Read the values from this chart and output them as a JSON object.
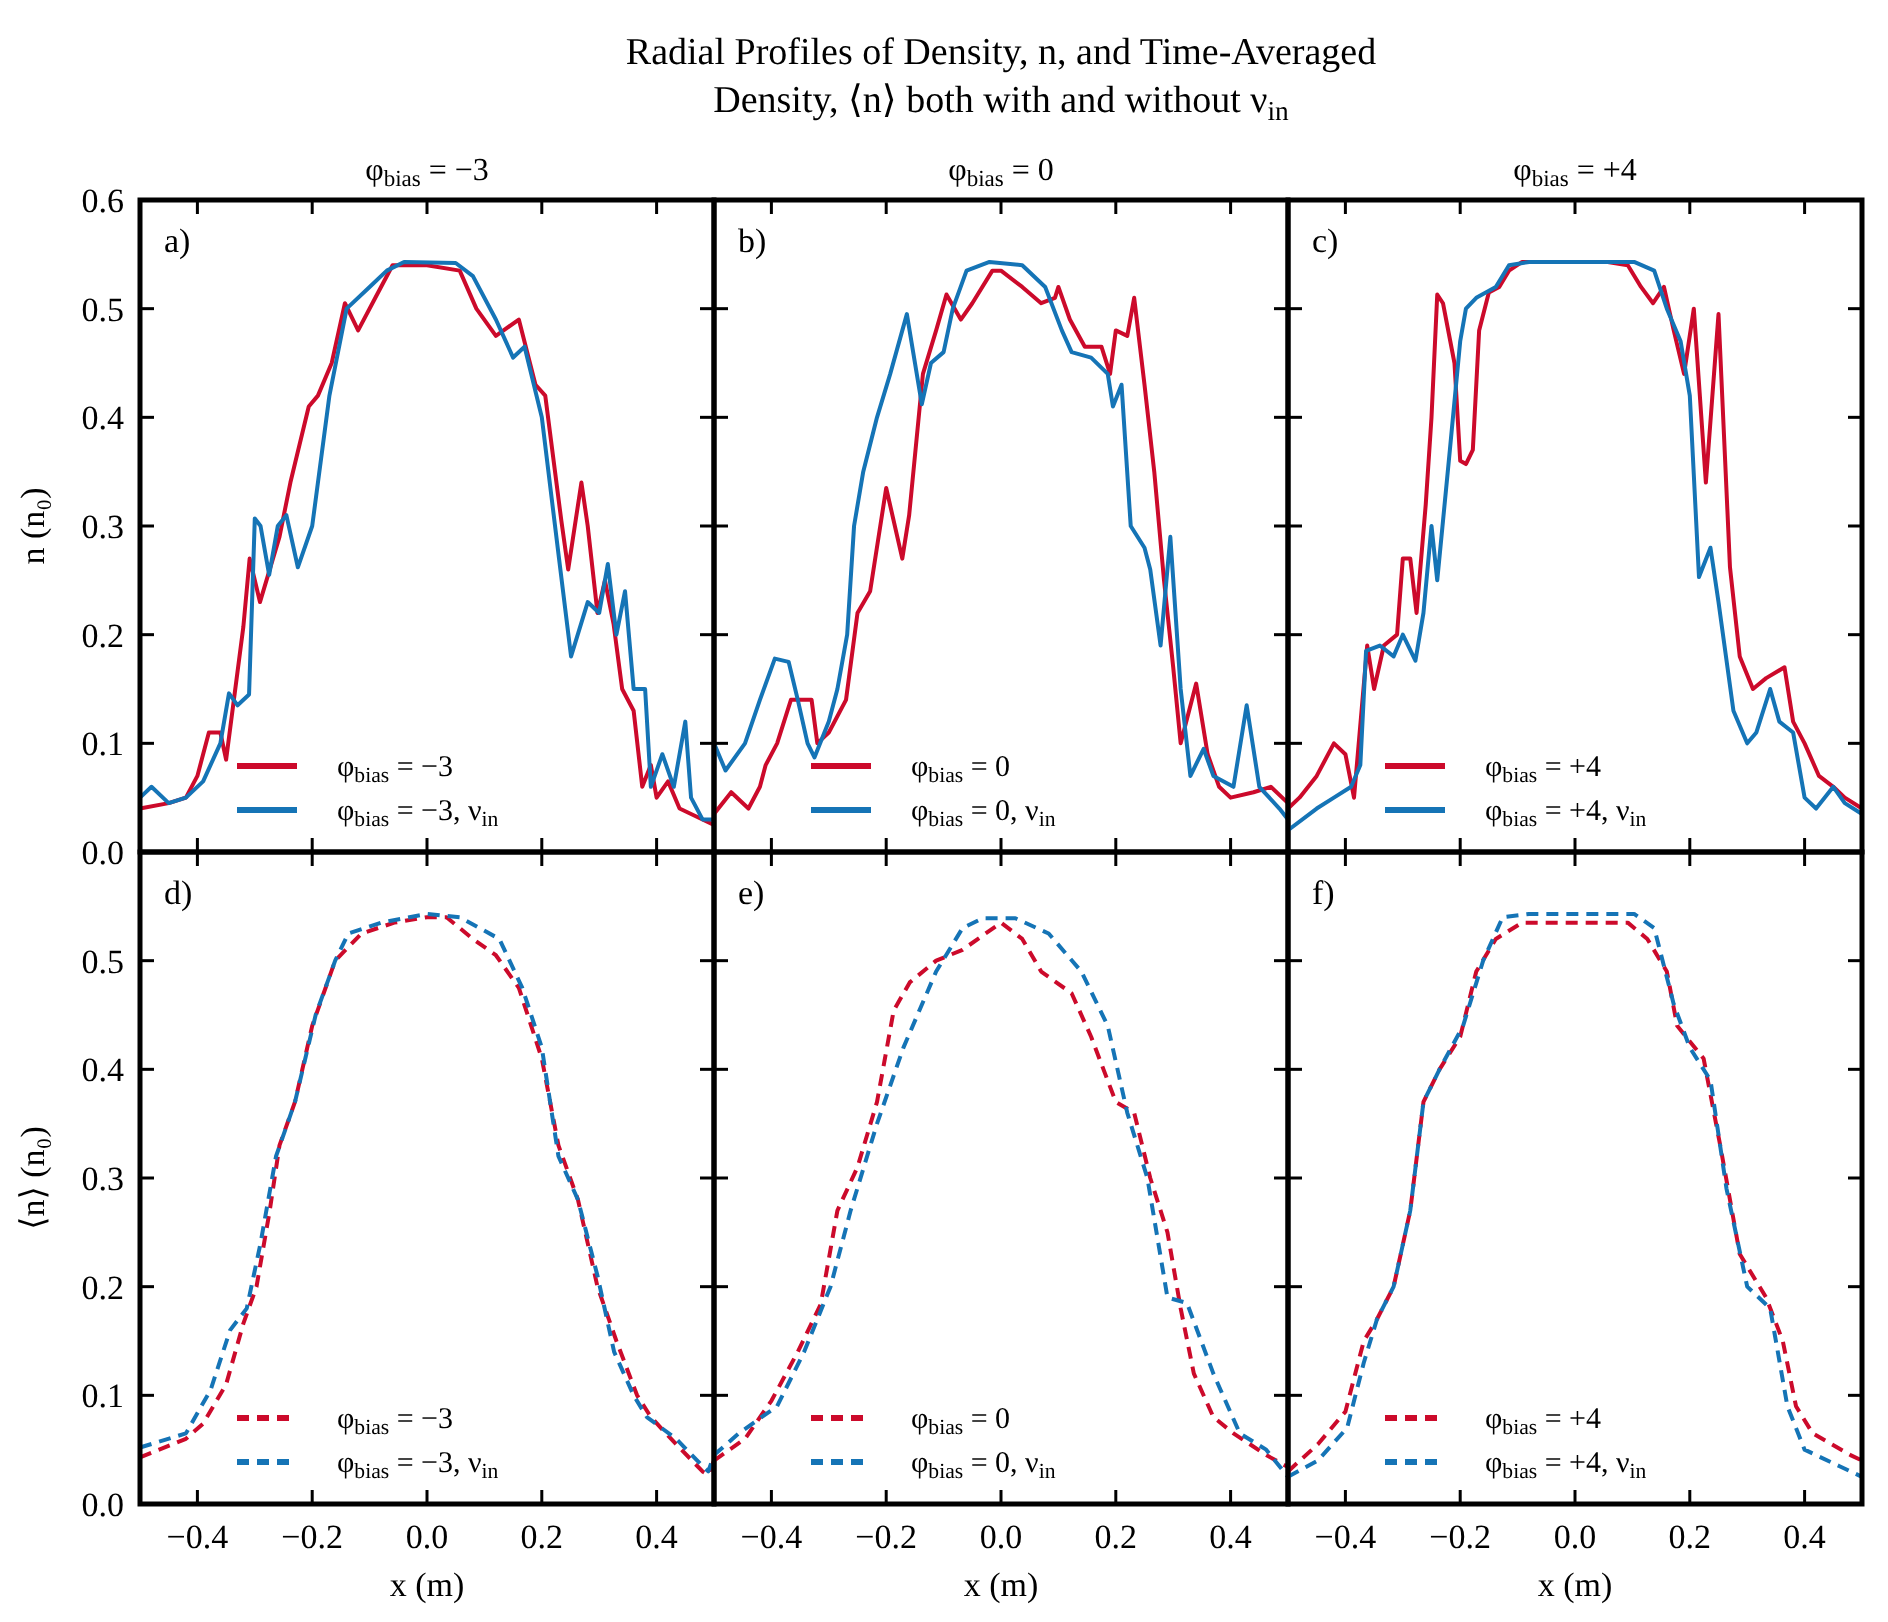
{
  "chart_data": [
    {
      "type": "other",
      "title": "Radial Profiles of Density, n, and Time-Averaged\nDensity, ⟨n⟩ both with and without ν$_{in}$"
    },
    {
      "type": "line",
      "title": "φ$_{bias}$ = −3",
      "ylabel": "n (n₀)",
      "annotations": [
        "a)"
      ],
      "legend": "bottom",
      "line_style": "solid",
      "tick_labels": "y",
      "xlim": [
        -0.5,
        0.5
      ],
      "ylim": [
        0,
        0.6
      ],
      "xticks": [
        {
          "value": -0.4,
          "label": null
        },
        {
          "value": -0.2,
          "label": null
        },
        {
          "value": 0,
          "label": null
        },
        {
          "value": 0.2,
          "label": null
        },
        {
          "value": 0.4,
          "label": null
        }
      ],
      "yticks": [
        {
          "value": 0,
          "label": "0.0"
        },
        {
          "value": 0.1,
          "label": "0.1"
        },
        {
          "value": 0.2,
          "label": "0.2"
        },
        {
          "value": 0.3,
          "label": "0.3"
        },
        {
          "value": 0.4,
          "label": "0.4"
        },
        {
          "value": 0.5,
          "label": "0.5"
        },
        {
          "value": 0.6,
          "label": "0.6"
        }
      ],
      "series": [
        {
          "name": "φ$_{bias}$ = −3",
          "color": "#cc0a2b",
          "x": [
            -0.5,
            -0.45,
            -0.42,
            -0.4,
            -0.38,
            -0.36,
            -0.35,
            -0.32,
            -0.309,
            -0.291,
            -0.257,
            -0.238,
            -0.206,
            -0.19,
            -0.166,
            -0.143,
            -0.12,
            -0.09,
            -0.06,
            0,
            0.057,
            0.086,
            0.12,
            0.16,
            0.189,
            0.206,
            0.234,
            0.246,
            0.269,
            0.28,
            0.297,
            0.31,
            0.325,
            0.34,
            0.36,
            0.375,
            0.39,
            0.4,
            0.42,
            0.44,
            0.46,
            0.5
          ],
          "values": [
            0.04,
            0.045,
            0.05,
            0.07,
            0.11,
            0.11,
            0.085,
            0.207,
            0.27,
            0.23,
            0.29,
            0.34,
            0.41,
            0.42,
            0.45,
            0.505,
            0.48,
            0.51,
            0.54,
            0.54,
            0.535,
            0.5,
            0.475,
            0.49,
            0.43,
            0.42,
            0.305,
            0.26,
            0.34,
            0.3,
            0.22,
            0.25,
            0.21,
            0.15,
            0.13,
            0.06,
            0.08,
            0.05,
            0.065,
            0.04,
            0.035,
            0.025
          ]
        },
        {
          "name": "φ$_{bias}$ = −3, ν$_{in}$",
          "color": "#1574b6",
          "x": [
            -0.5,
            -0.48,
            -0.45,
            -0.42,
            -0.39,
            -0.36,
            -0.345,
            -0.33,
            -0.31,
            -0.3,
            -0.29,
            -0.275,
            -0.26,
            -0.245,
            -0.225,
            -0.2,
            -0.17,
            -0.14,
            -0.1,
            -0.07,
            -0.04,
            0.05,
            0.08,
            0.12,
            0.15,
            0.17,
            0.2,
            0.23,
            0.251,
            0.28,
            0.3,
            0.315,
            0.33,
            0.345,
            0.36,
            0.38,
            0.39,
            0.41,
            0.43,
            0.45,
            0.46,
            0.48,
            0.5
          ],
          "values": [
            0.05,
            0.06,
            0.045,
            0.05,
            0.065,
            0.1,
            0.146,
            0.135,
            0.145,
            0.307,
            0.3,
            0.255,
            0.3,
            0.31,
            0.262,
            0.3,
            0.42,
            0.5,
            0.52,
            0.535,
            0.543,
            0.542,
            0.53,
            0.49,
            0.455,
            0.465,
            0.4,
            0.27,
            0.18,
            0.23,
            0.22,
            0.265,
            0.2,
            0.24,
            0.15,
            0.15,
            0.06,
            0.09,
            0.06,
            0.12,
            0.05,
            0.03,
            0.03
          ]
        }
      ]
    },
    {
      "type": "line",
      "title": "φ$_{bias}$ = 0",
      "annotations": [
        "b)"
      ],
      "legend": "bottom",
      "line_style": "solid",
      "tick_labels": false,
      "xlim": [
        -0.5,
        0.5
      ],
      "ylim": [
        0,
        0.6
      ],
      "xticks": [
        {
          "value": -0.4,
          "label": null
        },
        {
          "value": -0.2,
          "label": null
        },
        {
          "value": 0,
          "label": null
        },
        {
          "value": 0.2,
          "label": null
        },
        {
          "value": 0.4,
          "label": null
        }
      ],
      "yticks": [
        {
          "value": 0,
          "label": null
        },
        {
          "value": 0.1,
          "label": null
        },
        {
          "value": 0.2,
          "label": null
        },
        {
          "value": 0.3,
          "label": null
        },
        {
          "value": 0.4,
          "label": null
        },
        {
          "value": 0.5,
          "label": null
        },
        {
          "value": 0.6,
          "label": null
        }
      ],
      "series": [
        {
          "name": "φ$_{bias}$ = 0",
          "color": "#cc0a2b",
          "x": [
            -0.5,
            -0.47,
            -0.44,
            -0.42,
            -0.41,
            -0.39,
            -0.366,
            -0.33,
            -0.32,
            -0.3,
            -0.27,
            -0.25,
            -0.228,
            -0.2,
            -0.172,
            -0.16,
            -0.136,
            -0.113,
            -0.095,
            -0.07,
            -0.05,
            -0.015,
            0,
            0.037,
            0.07,
            0.094,
            0.1,
            0.12,
            0.146,
            0.175,
            0.19,
            0.2,
            0.22,
            0.232,
            0.25,
            0.267,
            0.284,
            0.3,
            0.313,
            0.34,
            0.36,
            0.38,
            0.4,
            0.44,
            0.47,
            0.5
          ],
          "values": [
            0.035,
            0.055,
            0.04,
            0.06,
            0.08,
            0.1,
            0.14,
            0.14,
            0.1,
            0.11,
            0.14,
            0.22,
            0.24,
            0.335,
            0.27,
            0.31,
            0.44,
            0.48,
            0.513,
            0.49,
            0.505,
            0.535,
            0.535,
            0.52,
            0.505,
            0.51,
            0.52,
            0.49,
            0.465,
            0.465,
            0.44,
            0.48,
            0.475,
            0.51,
            0.43,
            0.35,
            0.25,
            0.17,
            0.1,
            0.155,
            0.09,
            0.06,
            0.05,
            0.055,
            0.06,
            0.045
          ]
        },
        {
          "name": "φ$_{bias}$ = 0, ν$_{in}$",
          "color": "#1574b6",
          "x": [
            -0.5,
            -0.48,
            -0.446,
            -0.42,
            -0.394,
            -0.37,
            -0.354,
            -0.337,
            -0.325,
            -0.3,
            -0.285,
            -0.268,
            -0.256,
            -0.24,
            -0.216,
            -0.193,
            -0.164,
            -0.138,
            -0.122,
            -0.1,
            -0.084,
            -0.06,
            -0.02,
            0.037,
            0.077,
            0.106,
            0.123,
            0.157,
            0.186,
            0.195,
            0.21,
            0.226,
            0.25,
            0.26,
            0.278,
            0.295,
            0.313,
            0.33,
            0.353,
            0.37,
            0.405,
            0.428,
            0.45,
            0.485,
            0.5
          ],
          "values": [
            0.1,
            0.075,
            0.1,
            0.14,
            0.178,
            0.175,
            0.14,
            0.1,
            0.087,
            0.12,
            0.15,
            0.2,
            0.3,
            0.35,
            0.4,
            0.44,
            0.495,
            0.412,
            0.45,
            0.46,
            0.5,
            0.535,
            0.543,
            0.54,
            0.52,
            0.48,
            0.46,
            0.455,
            0.44,
            0.41,
            0.43,
            0.3,
            0.28,
            0.26,
            0.19,
            0.29,
            0.15,
            0.07,
            0.095,
            0.07,
            0.06,
            0.135,
            0.06,
            0.04,
            0.03
          ]
        }
      ]
    },
    {
      "type": "line",
      "title": "φ$_{bias}$ = +4",
      "annotations": [
        "c)"
      ],
      "legend": "bottom",
      "line_style": "solid",
      "tick_labels": false,
      "xlim": [
        -0.5,
        0.5
      ],
      "ylim": [
        0,
        0.6
      ],
      "xticks": [
        {
          "value": -0.4,
          "label": null
        },
        {
          "value": -0.2,
          "label": null
        },
        {
          "value": 0,
          "label": null
        },
        {
          "value": 0.2,
          "label": null
        },
        {
          "value": 0.4,
          "label": null
        }
      ],
      "yticks": [
        {
          "value": 0,
          "label": null
        },
        {
          "value": 0.1,
          "label": null
        },
        {
          "value": 0.2,
          "label": null
        },
        {
          "value": 0.3,
          "label": null
        },
        {
          "value": 0.4,
          "label": null
        },
        {
          "value": 0.5,
          "label": null
        },
        {
          "value": 0.6,
          "label": null
        }
      ],
      "series": [
        {
          "name": "φ$_{bias}$ = +4",
          "color": "#cc0a2b",
          "x": [
            -0.5,
            -0.48,
            -0.45,
            -0.42,
            -0.4,
            -0.385,
            -0.362,
            -0.35,
            -0.333,
            -0.31,
            -0.3,
            -0.287,
            -0.276,
            -0.26,
            -0.25,
            -0.24,
            -0.23,
            -0.21,
            -0.2,
            -0.19,
            -0.178,
            -0.167,
            -0.15,
            -0.132,
            -0.115,
            -0.092,
            0.057,
            0.092,
            0.115,
            0.136,
            0.155,
            0.172,
            0.19,
            0.207,
            0.228,
            0.25,
            0.27,
            0.287,
            0.31,
            0.333,
            0.365,
            0.38,
            0.4,
            0.425,
            0.45,
            0.47,
            0.5
          ],
          "values": [
            0.04,
            0.05,
            0.07,
            0.1,
            0.09,
            0.05,
            0.19,
            0.15,
            0.19,
            0.2,
            0.27,
            0.27,
            0.22,
            0.32,
            0.4,
            0.513,
            0.505,
            0.45,
            0.36,
            0.357,
            0.37,
            0.48,
            0.515,
            0.52,
            0.535,
            0.543,
            0.543,
            0.54,
            0.52,
            0.505,
            0.52,
            0.48,
            0.44,
            0.5,
            0.34,
            0.495,
            0.262,
            0.18,
            0.15,
            0.16,
            0.17,
            0.12,
            0.1,
            0.07,
            0.06,
            0.05,
            0.04
          ]
        },
        {
          "name": "φ$_{bias}$ = +4, ν$_{in}$",
          "color": "#1574b6",
          "x": [
            -0.5,
            -0.45,
            -0.42,
            -0.39,
            -0.374,
            -0.364,
            -0.34,
            -0.316,
            -0.3,
            -0.278,
            -0.264,
            -0.25,
            -0.24,
            -0.218,
            -0.2,
            -0.19,
            -0.172,
            -0.138,
            -0.115,
            -0.08,
            0.103,
            0.138,
            0.16,
            0.184,
            0.2,
            0.216,
            0.236,
            0.25,
            0.276,
            0.3,
            0.316,
            0.34,
            0.356,
            0.38,
            0.4,
            0.42,
            0.45,
            0.47,
            0.5
          ],
          "values": [
            0.02,
            0.04,
            0.05,
            0.06,
            0.08,
            0.185,
            0.19,
            0.18,
            0.2,
            0.176,
            0.22,
            0.3,
            0.25,
            0.37,
            0.47,
            0.5,
            0.51,
            0.52,
            0.54,
            0.543,
            0.543,
            0.535,
            0.5,
            0.47,
            0.42,
            0.253,
            0.28,
            0.23,
            0.13,
            0.1,
            0.11,
            0.15,
            0.12,
            0.11,
            0.05,
            0.04,
            0.06,
            0.045,
            0.035
          ]
        }
      ]
    },
    {
      "type": "line",
      "xlabel": "x (m)",
      "ylabel": "⟨n⟩ (n₀)",
      "annotations": [
        "d)"
      ],
      "legend": "bottom",
      "line_style": "dashed",
      "xlim": [
        -0.5,
        0.5
      ],
      "ylim": [
        0,
        0.6
      ],
      "xticks": [
        {
          "value": -0.4,
          "label": "−0.4"
        },
        {
          "value": -0.2,
          "label": "−0.2"
        },
        {
          "value": 0,
          "label": "0.0"
        },
        {
          "value": 0.2,
          "label": "0.2"
        },
        {
          "value": 0.4,
          "label": "0.4"
        }
      ],
      "yticks": [
        {
          "value": 0,
          "label": "0.0"
        },
        {
          "value": 0.1,
          "label": "0.1"
        },
        {
          "value": 0.2,
          "label": "0.2"
        },
        {
          "value": 0.3,
          "label": "0.3"
        },
        {
          "value": 0.4,
          "label": "0.4"
        },
        {
          "value": 0.5,
          "label": "0.5"
        },
        {
          "value": 0.6,
          "label": null
        }
      ],
      "series": [
        {
          "name": "φ$_{bias}$ = −3",
          "color": "#cc0a2b",
          "x": [
            -0.5,
            -0.42,
            -0.39,
            -0.35,
            -0.32,
            -0.297,
            -0.274,
            -0.257,
            -0.23,
            -0.2,
            -0.16,
            -0.114,
            -0.057,
            0,
            0.034,
            0.08,
            0.12,
            0.16,
            0.2,
            0.229,
            0.263,
            0.297,
            0.33,
            0.366,
            0.39,
            0.434,
            0.48,
            0.49,
            0.5
          ],
          "values": [
            0.043,
            0.06,
            0.074,
            0.11,
            0.166,
            0.2,
            0.27,
            0.33,
            0.37,
            0.44,
            0.5,
            0.525,
            0.535,
            0.54,
            0.54,
            0.52,
            0.505,
            0.475,
            0.41,
            0.33,
            0.28,
            0.2,
            0.15,
            0.1,
            0.08,
            0.055,
            0.03,
            0.027,
            0.04
          ]
        },
        {
          "name": "φ$_{bias}$ = −3, ν$_{in}$",
          "color": "#1574b6",
          "x": [
            -0.5,
            -0.42,
            -0.377,
            -0.343,
            -0.314,
            -0.29,
            -0.263,
            -0.23,
            -0.194,
            -0.16,
            -0.137,
            -0.08,
            0,
            0.057,
            0.126,
            0.166,
            0.2,
            0.229,
            0.263,
            0.297,
            0.326,
            0.36,
            0.383,
            0.434,
            0.48,
            0.49,
            0.5
          ],
          "values": [
            0.052,
            0.065,
            0.105,
            0.16,
            0.18,
            0.24,
            0.32,
            0.37,
            0.45,
            0.5,
            0.525,
            0.535,
            0.543,
            0.54,
            0.52,
            0.475,
            0.42,
            0.32,
            0.28,
            0.21,
            0.14,
            0.1,
            0.08,
            0.06,
            0.035,
            0.03,
            0.045
          ]
        }
      ]
    },
    {
      "type": "line",
      "xlabel": "x (m)",
      "annotations": [
        "e)"
      ],
      "legend": "bottom",
      "line_style": "dashed",
      "tick_labels": "x",
      "xlim": [
        -0.5,
        0.5
      ],
      "ylim": [
        0,
        0.6
      ],
      "xticks": [
        {
          "value": -0.4,
          "label": "−0.4"
        },
        {
          "value": -0.2,
          "label": "−0.2"
        },
        {
          "value": 0,
          "label": "0.0"
        },
        {
          "value": 0.2,
          "label": "0.2"
        },
        {
          "value": 0.4,
          "label": "0.4"
        }
      ],
      "yticks": [
        {
          "value": 0,
          "label": null
        },
        {
          "value": 0.1,
          "label": null
        },
        {
          "value": 0.2,
          "label": null
        },
        {
          "value": 0.3,
          "label": null
        },
        {
          "value": 0.4,
          "label": null
        },
        {
          "value": 0.5,
          "label": null
        },
        {
          "value": 0.6,
          "label": null
        }
      ],
      "series": [
        {
          "name": "φ$_{bias}$ = 0",
          "color": "#cc0a2b",
          "x": [
            -0.5,
            -0.446,
            -0.4,
            -0.354,
            -0.314,
            -0.285,
            -0.25,
            -0.216,
            -0.187,
            -0.159,
            -0.113,
            -0.067,
            0,
            0.037,
            0.07,
            0.123,
            0.157,
            0.2,
            0.232,
            0.26,
            0.29,
            0.313,
            0.336,
            0.37,
            0.405,
            0.462,
            0.5
          ],
          "values": [
            0.04,
            0.06,
            0.095,
            0.14,
            0.184,
            0.27,
            0.31,
            0.37,
            0.454,
            0.48,
            0.5,
            0.51,
            0.535,
            0.52,
            0.49,
            0.47,
            0.43,
            0.37,
            0.36,
            0.3,
            0.25,
            0.18,
            0.12,
            0.08,
            0.065,
            0.045,
            0.034
          ]
        },
        {
          "name": "φ$_{bias}$ = 0, ν$_{in}$",
          "color": "#1574b6",
          "x": [
            -0.5,
            -0.457,
            -0.39,
            -0.343,
            -0.297,
            -0.262,
            -0.216,
            -0.17,
            -0.113,
            -0.067,
            -0.032,
            0.025,
            0.083,
            0.14,
            0.186,
            0.22,
            0.255,
            0.29,
            0.324,
            0.37,
            0.416,
            0.462,
            0.5
          ],
          "values": [
            0.045,
            0.065,
            0.09,
            0.14,
            0.2,
            0.27,
            0.35,
            0.42,
            0.49,
            0.53,
            0.539,
            0.539,
            0.525,
            0.49,
            0.44,
            0.36,
            0.3,
            0.19,
            0.185,
            0.12,
            0.065,
            0.05,
            0.025
          ]
        }
      ]
    },
    {
      "type": "line",
      "xlabel": "x (m)",
      "annotations": [
        "f)"
      ],
      "legend": "bottom",
      "line_style": "dashed",
      "tick_labels": "x",
      "xlim": [
        -0.5,
        0.5
      ],
      "ylim": [
        0,
        0.6
      ],
      "xticks": [
        {
          "value": -0.4,
          "label": "−0.4"
        },
        {
          "value": -0.2,
          "label": "−0.2"
        },
        {
          "value": 0,
          "label": "0.0"
        },
        {
          "value": 0.2,
          "label": "0.2"
        },
        {
          "value": 0.4,
          "label": "0.4"
        }
      ],
      "yticks": [
        {
          "value": 0,
          "label": null
        },
        {
          "value": 0.1,
          "label": null
        },
        {
          "value": 0.2,
          "label": null
        },
        {
          "value": 0.3,
          "label": null
        },
        {
          "value": 0.4,
          "label": null
        },
        {
          "value": 0.5,
          "label": null
        },
        {
          "value": 0.6,
          "label": null
        }
      ],
      "series": [
        {
          "name": "φ$_{bias}$ = +4",
          "color": "#cc0a2b",
          "x": [
            -0.5,
            -0.448,
            -0.4,
            -0.368,
            -0.345,
            -0.316,
            -0.287,
            -0.264,
            -0.236,
            -0.2,
            -0.172,
            -0.138,
            -0.092,
            0.092,
            0.126,
            0.16,
            0.178,
            0.224,
            0.253,
            0.287,
            0.333,
            0.362,
            0.385,
            0.414,
            0.48,
            0.5
          ],
          "values": [
            0.03,
            0.055,
            0.085,
            0.15,
            0.17,
            0.2,
            0.27,
            0.37,
            0.4,
            0.43,
            0.49,
            0.52,
            0.535,
            0.535,
            0.52,
            0.49,
            0.44,
            0.41,
            0.33,
            0.23,
            0.19,
            0.15,
            0.09,
            0.065,
            0.045,
            0.04
          ]
        },
        {
          "name": "φ$_{bias}$ = +4, ν$_{in}$",
          "color": "#1574b6",
          "x": [
            -0.5,
            -0.448,
            -0.397,
            -0.368,
            -0.345,
            -0.316,
            -0.287,
            -0.264,
            -0.236,
            -0.195,
            -0.16,
            -0.126,
            -0.08,
            0.103,
            0.138,
            0.172,
            0.2,
            0.236,
            0.264,
            0.3,
            0.34,
            0.37,
            0.4,
            0.46,
            0.5
          ],
          "values": [
            0.025,
            0.04,
            0.07,
            0.13,
            0.17,
            0.2,
            0.27,
            0.37,
            0.4,
            0.44,
            0.5,
            0.54,
            0.543,
            0.543,
            0.53,
            0.46,
            0.42,
            0.39,
            0.29,
            0.2,
            0.18,
            0.09,
            0.05,
            0.035,
            0.025
          ]
        }
      ]
    }
  ]
}
